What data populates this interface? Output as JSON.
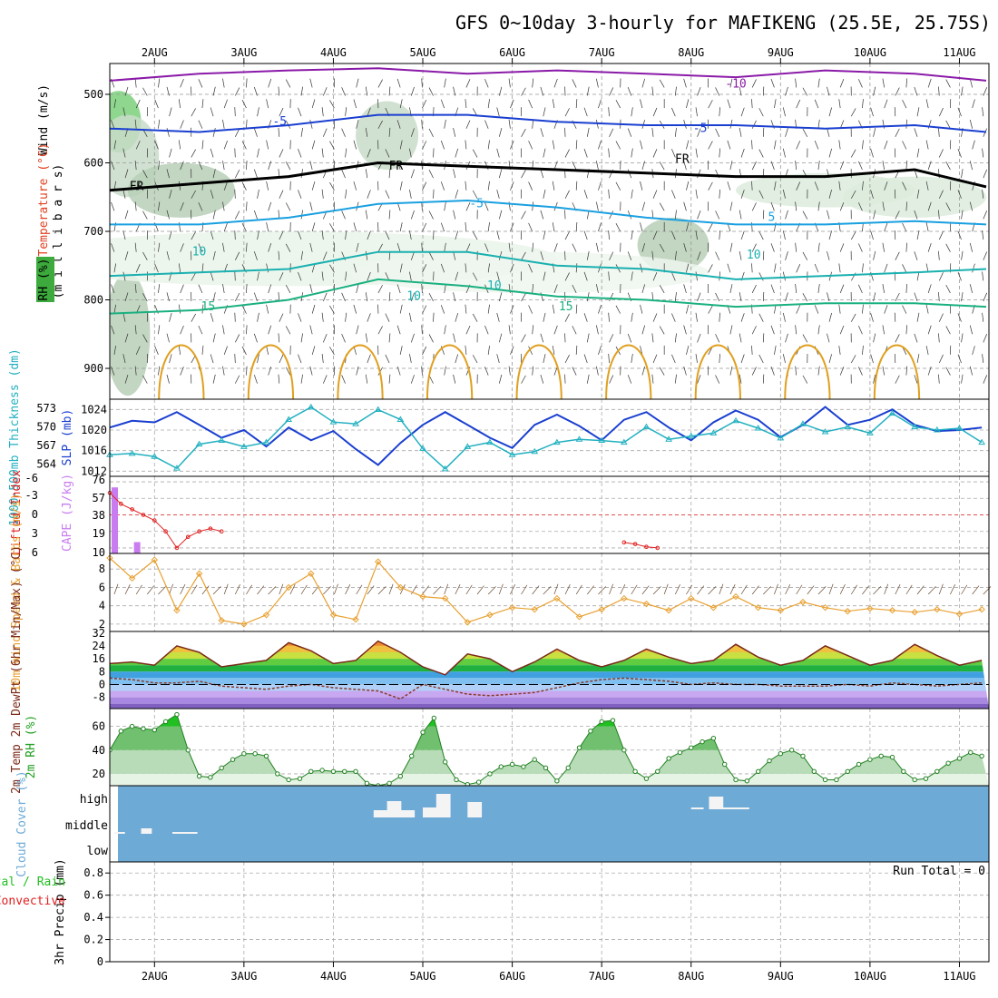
{
  "title": "GFS 0~10day 3-hourly for MAFIKENG (25.5E, 25.75S)",
  "chart_data": [
    {
      "type": "contour",
      "name": "upper-air",
      "y_ticks": [
        500,
        600,
        700,
        800,
        900
      ],
      "ylabel": "(m i l l i b a r s)",
      "labels": {
        "wind": "Wind (m/s)",
        "temperature": "Temperature (°C)",
        "rh": "RH (%)"
      },
      "contour_labels": [
        "-10",
        "-5",
        "-5",
        "FR",
        "FR",
        "FR",
        "-5",
        "5",
        "10",
        "10",
        "10",
        "15",
        "15",
        "10"
      ],
      "isotherms_vs_day": {
        "x": [
          1.5,
          2.5,
          3.5,
          4.5,
          5.5,
          6.5,
          7.5,
          8.5,
          9.5,
          10.5,
          11.3
        ],
        "minus10_mb": [
          480,
          470,
          465,
          462,
          470,
          465,
          470,
          475,
          465,
          470,
          480
        ],
        "minus5_mb": [
          550,
          555,
          545,
          530,
          530,
          540,
          545,
          545,
          550,
          545,
          555
        ],
        "fr_mb": [
          640,
          630,
          620,
          600,
          605,
          610,
          615,
          620,
          620,
          610,
          635
        ],
        "plus5_mb": [
          690,
          690,
          680,
          660,
          655,
          665,
          680,
          690,
          690,
          685,
          690
        ],
        "plus10_mb": [
          765,
          760,
          755,
          730,
          730,
          750,
          755,
          770,
          765,
          760,
          755
        ],
        "plus15_mb": [
          820,
          815,
          800,
          770,
          780,
          795,
          800,
          810,
          805,
          805,
          810
        ]
      }
    },
    {
      "type": "line",
      "name": "thickness-slp",
      "ylabel_left": "1000-500mb Thickness (dm)",
      "ylabel_right": "SLP (mb)",
      "yticks_left": [
        564,
        567,
        570,
        573
      ],
      "yticks_right": [
        1012,
        1016,
        1020,
        1024
      ],
      "x": [
        1.5,
        1.75,
        2.0,
        2.25,
        2.5,
        2.75,
        3.0,
        3.25,
        3.5,
        3.75,
        4.0,
        4.25,
        4.5,
        4.75,
        5.0,
        5.25,
        5.5,
        5.75,
        6.0,
        6.25,
        6.5,
        6.75,
        7.0,
        7.25,
        7.5,
        7.75,
        8.0,
        8.25,
        8.5,
        8.75,
        9.0,
        9.25,
        9.5,
        9.75,
        10.0,
        10.25,
        10.5,
        10.75,
        11.0,
        11.25
      ],
      "series": [
        {
          "name": "SLP",
          "values": [
            1020.5,
            1021.8,
            1021.5,
            1023.5,
            1021,
            1018.5,
            1020,
            1016.8,
            1020.5,
            1018,
            1019.8,
            1016.3,
            1013.2,
            1017.5,
            1021,
            1023.5,
            1021,
            1018.5,
            1016.5,
            1021,
            1023,
            1020.8,
            1018,
            1022,
            1023.5,
            1020.5,
            1018,
            1021.5,
            1023.8,
            1022,
            1018.6,
            1021,
            1024.5,
            1021,
            1022,
            1024,
            1021,
            1019.8,
            1020,
            1020.5
          ]
        },
        {
          "name": "Thickness",
          "values": [
            565.5,
            565.7,
            565.2,
            563.3,
            567.2,
            567.8,
            566.8,
            567.5,
            571.2,
            573.2,
            570.8,
            570.5,
            572.8,
            571.2,
            566.5,
            563.2,
            566.8,
            567.5,
            565.5,
            566,
            567.5,
            568,
            567.8,
            567.5,
            570,
            568,
            568.5,
            569,
            571,
            569.8,
            568.2,
            570.5,
            569.2,
            570,
            569,
            572.2,
            570,
            569.5,
            569.8,
            567.5
          ]
        }
      ]
    },
    {
      "type": "bar-line",
      "name": "cape-li",
      "ylabel_left": "Lifted Index",
      "ylabel_right": "CAPE (J/kg)",
      "yticks_left": [
        "-6",
        "-3",
        "0",
        "3",
        "6"
      ],
      "yticks_right": [
        "76",
        "57",
        "38",
        "19",
        "10"
      ],
      "cape_bars": {
        "x": [
          1.5,
          1.75
        ],
        "values": [
          70,
          12
        ]
      },
      "lifted_index": {
        "x": [
          1.5,
          1.625,
          1.75,
          1.875,
          2.0,
          2.125,
          2.25,
          2.375,
          2.5,
          2.625,
          2.75
        ],
        "values": [
          -4,
          -2,
          -1,
          0,
          1,
          3,
          6,
          4,
          3,
          2.5,
          3
        ]
      },
      "li_late": {
        "x": [
          7.25,
          7.375,
          7.5,
          7.625
        ],
        "values": [
          5,
          5.3,
          5.8,
          6
        ]
      }
    },
    {
      "type": "line",
      "name": "wind10m",
      "ylabel": "10m Wind Speed & Barbs (m/s)",
      "yticks": [
        2,
        4,
        6,
        8
      ],
      "x": [
        1.5,
        1.75,
        2.0,
        2.25,
        2.5,
        2.75,
        3.0,
        3.25,
        3.5,
        3.75,
        4.0,
        4.25,
        4.5,
        4.75,
        5.0,
        5.25,
        5.5,
        5.75,
        6.0,
        6.25,
        6.5,
        6.75,
        7.0,
        7.25,
        7.5,
        7.75,
        8.0,
        8.25,
        8.5,
        8.75,
        9.0,
        9.25,
        9.5,
        9.75,
        10.0,
        10.25,
        10.5,
        10.75,
        11.0,
        11.25
      ],
      "values": [
        9.2,
        7,
        9,
        3.5,
        7.5,
        2.4,
        2,
        3,
        6,
        7.5,
        3,
        2.5,
        8.8,
        6,
        5,
        4.8,
        2.2,
        3,
        3.8,
        3.6,
        4.8,
        2.8,
        3.6,
        4.8,
        4.2,
        3.5,
        4.8,
        3.8,
        5,
        3.8,
        3.5,
        4.4,
        3.8,
        3.4,
        3.7,
        3.5,
        3.3,
        3.6,
        3.1,
        3.6
      ]
    },
    {
      "type": "area",
      "name": "temp-dewpt",
      "ylabel": "2m Temp 2m DewPt (6hr Min/Max) (°C)",
      "yticks": [
        "32",
        "24",
        "16",
        "8",
        "0",
        "-8"
      ],
      "x": [
        1.5,
        1.75,
        2.0,
        2.25,
        2.5,
        2.75,
        3.0,
        3.25,
        3.5,
        3.75,
        4.0,
        4.25,
        4.5,
        4.75,
        5.0,
        5.25,
        5.5,
        5.75,
        6.0,
        6.25,
        6.5,
        6.75,
        7.0,
        7.25,
        7.5,
        7.75,
        8.0,
        8.25,
        8.5,
        8.75,
        9.0,
        9.25,
        9.5,
        9.75,
        10.0,
        10.25,
        10.5,
        10.75,
        11.0,
        11.25
      ],
      "series": [
        {
          "name": "temp",
          "values": [
            13,
            14,
            12,
            24,
            20,
            11,
            13,
            15,
            26,
            21,
            13,
            15,
            27,
            20,
            11,
            6,
            19,
            16,
            8,
            14,
            22,
            15,
            11,
            15,
            22,
            17,
            13,
            15,
            25,
            17,
            12,
            15,
            24,
            18,
            12,
            15,
            25,
            18,
            12,
            15
          ]
        },
        {
          "name": "dewpoint",
          "values": [
            4,
            3,
            1,
            1,
            2,
            -1,
            -2,
            -3,
            -1,
            0,
            -2,
            -3,
            -4,
            -9,
            0,
            -3,
            -6,
            -7,
            -6,
            -5,
            -2,
            1,
            3,
            4,
            3,
            2,
            0,
            1,
            0,
            0,
            -1,
            -1,
            -1,
            0,
            -1,
            1,
            0,
            -1,
            0,
            1
          ]
        }
      ]
    },
    {
      "type": "area",
      "name": "rh2m",
      "ylabel": "2m RH (%)",
      "yticks": [
        20,
        40,
        60
      ],
      "x": [
        1.5,
        1.625,
        1.75,
        1.875,
        2.0,
        2.125,
        2.25,
        2.375,
        2.5,
        2.625,
        2.75,
        2.875,
        3.0,
        3.125,
        3.25,
        3.375,
        3.5,
        3.625,
        3.75,
        3.875,
        4.0,
        4.125,
        4.25,
        4.375,
        4.5,
        4.625,
        4.75,
        4.875,
        5.0,
        5.125,
        5.25,
        5.375,
        5.5,
        5.625,
        5.75,
        5.875,
        6.0,
        6.125,
        6.25,
        6.375,
        6.5,
        6.625,
        6.75,
        6.875,
        7.0,
        7.125,
        7.25,
        7.375,
        7.5,
        7.625,
        7.75,
        7.875,
        8.0,
        8.125,
        8.25,
        8.375,
        8.5,
        8.625,
        8.75,
        8.875,
        9.0,
        9.125,
        9.25,
        9.375,
        9.5,
        9.625,
        9.75,
        9.875,
        10.0,
        10.125,
        10.25,
        10.375,
        10.5,
        10.625,
        10.75,
        10.875,
        11.0,
        11.125,
        11.25
      ],
      "values": [
        40,
        56,
        60,
        58,
        57,
        64,
        70,
        40,
        18,
        17,
        25,
        32,
        37,
        37,
        35,
        20,
        15,
        16,
        22,
        23,
        22,
        22,
        22,
        12,
        10,
        12,
        18,
        35,
        55,
        67,
        30,
        15,
        11,
        13,
        20,
        26,
        28,
        26,
        32,
        25,
        14,
        25,
        42,
        56,
        64,
        65,
        40,
        22,
        16,
        22,
        33,
        38,
        42,
        47,
        50,
        28,
        15,
        14,
        22,
        31,
        37,
        40,
        35,
        22,
        15,
        15,
        22,
        28,
        32,
        35,
        34,
        22,
        15,
        16,
        22,
        29,
        33,
        38,
        35
      ]
    },
    {
      "type": "bar",
      "name": "cloud-cover",
      "ylabel": "Cloud Cover (%)",
      "ylevels": [
        "high",
        "middle",
        "low"
      ]
    },
    {
      "type": "bar",
      "name": "precip",
      "ylabel": "3hr Precip (mm)",
      "legend": [
        "Total / Rain",
        "Convective"
      ],
      "yticks": [
        "0.8",
        "0.6",
        "0.4",
        "0.2",
        "0"
      ],
      "run_total": "Run Total = 0"
    }
  ],
  "x_axis": {
    "labels": [
      "2AUG",
      "3AUG",
      "4AUG",
      "5AUG",
      "6AUG",
      "7AUG",
      "8AUG",
      "9AUG",
      "10AUG",
      "11AUG"
    ],
    "start_day": 1.5,
    "end_day": 11.33
  },
  "colors": {
    "slp": "#1a3fd0",
    "thickness": "#22b0c0",
    "li": "#e02020",
    "cape": "#c97cf0",
    "wind": "#e8a030",
    "temp_line": "#7a2a1a",
    "rh_line": "#208020",
    "cloud_bg": "#6eaad6"
  }
}
